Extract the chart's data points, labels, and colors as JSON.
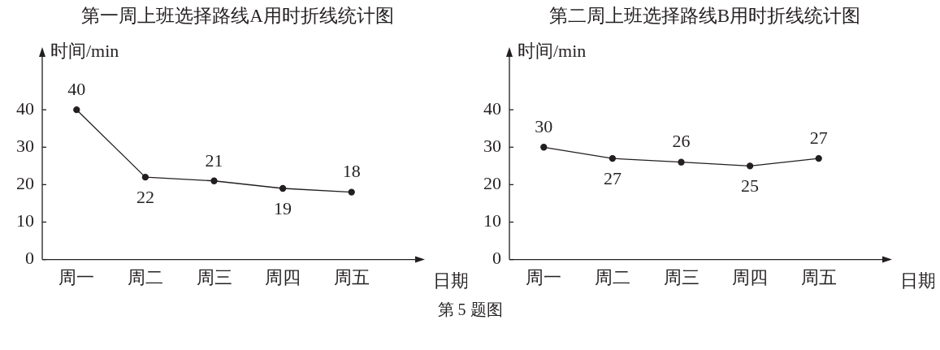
{
  "chart_data": [
    {
      "type": "line",
      "title": "第一周上班选择路线A用时折线统计图",
      "xlabel": "日期",
      "ylabel": "时间/min",
      "categories": [
        "周一",
        "周二",
        "周三",
        "周四",
        "周五"
      ],
      "values": [
        40,
        22,
        21,
        19,
        18
      ],
      "color": "#231f20",
      "ylim": [
        0,
        55
      ],
      "yticks": [
        0,
        10,
        20,
        30,
        40
      ],
      "grid": false,
      "legend": false,
      "marker": "circle",
      "line_style": "solid",
      "data_labels": true
    },
    {
      "type": "line",
      "title": "第二周上班选择路线B用时折线统计图",
      "xlabel": "日期",
      "ylabel": "时间/min",
      "categories": [
        "周一",
        "周二",
        "周三",
        "周四",
        "周五"
      ],
      "values": [
        30,
        27,
        26,
        25,
        27
      ],
      "color": "#231f20",
      "ylim": [
        0,
        55
      ],
      "yticks": [
        0,
        10,
        20,
        30,
        40
      ],
      "grid": false,
      "legend": false,
      "marker": "circle",
      "line_style": "solid",
      "data_labels": true,
      "annotations": [
        "第 5 题图"
      ]
    }
  ]
}
